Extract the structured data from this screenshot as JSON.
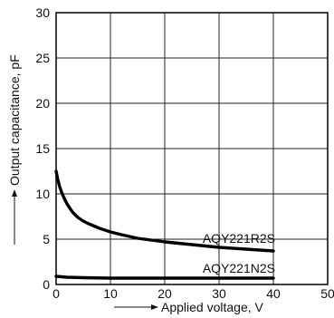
{
  "chart_data": {
    "type": "line",
    "xlabel": "Applied voltage, V",
    "ylabel": "Output capacitance, pF",
    "xlim": [
      0,
      50
    ],
    "ylim": [
      0,
      30
    ],
    "xticks": [
      0,
      10,
      20,
      30,
      40,
      50
    ],
    "yticks": [
      0,
      5,
      10,
      15,
      20,
      25,
      30
    ],
    "grid": true,
    "series": [
      {
        "name": "AQY221R2S",
        "x": [
          0,
          0.3,
          0.6,
          1,
          1.5,
          2,
          3,
          4,
          5,
          6,
          8,
          10,
          12,
          15,
          20,
          25,
          30,
          35,
          40
        ],
        "y": [
          12.5,
          11.6,
          10.9,
          10.2,
          9.5,
          8.9,
          8.0,
          7.4,
          7.0,
          6.7,
          6.2,
          5.8,
          5.5,
          5.1,
          4.7,
          4.4,
          4.1,
          3.9,
          3.7
        ]
      },
      {
        "name": "AQY221N2S",
        "x": [
          0,
          1,
          2,
          5,
          10,
          15,
          20,
          30,
          40
        ],
        "y": [
          0.9,
          0.85,
          0.8,
          0.75,
          0.7,
          0.7,
          0.7,
          0.7,
          0.7
        ]
      }
    ]
  }
}
